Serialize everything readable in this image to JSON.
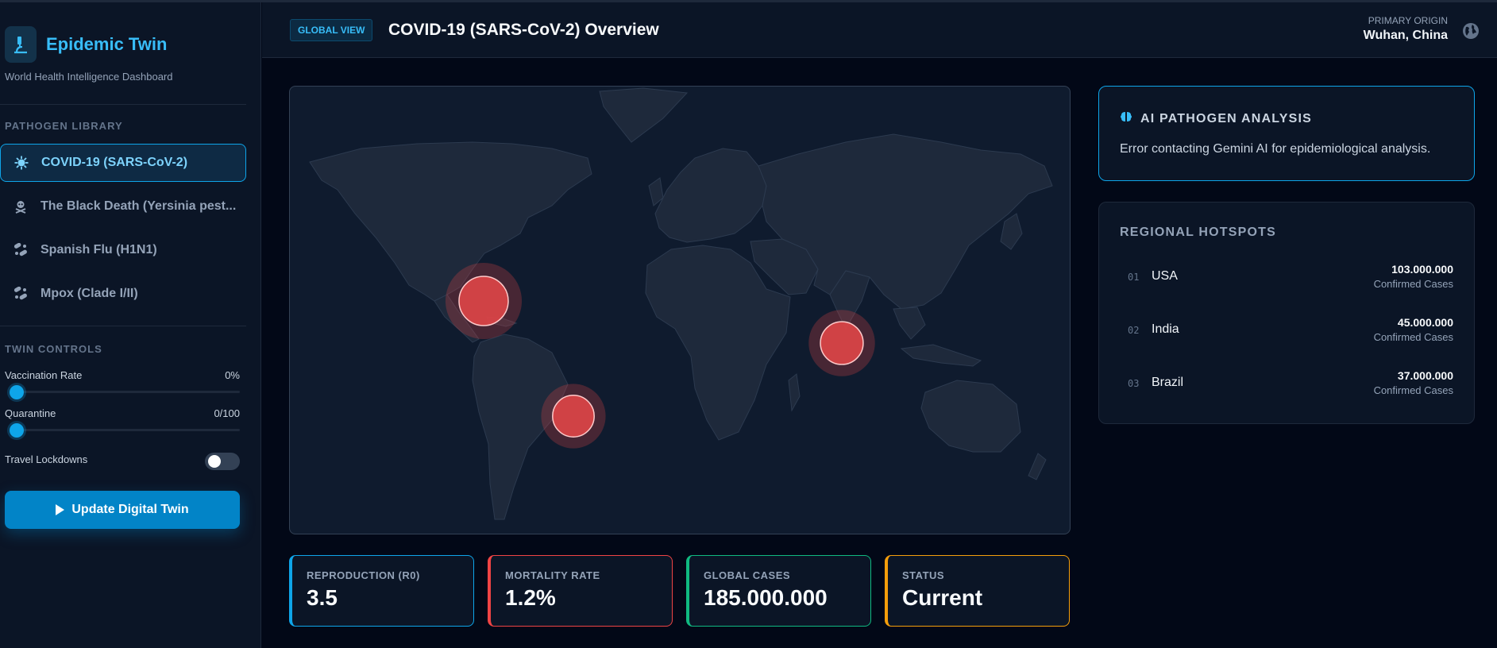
{
  "app": {
    "title": "Epidemic Twin",
    "subtitle": "World Health Intelligence Dashboard"
  },
  "sidebar": {
    "library_title": "PATHOGEN LIBRARY",
    "pathogens": [
      {
        "label": "COVID-19 (SARS-CoV-2)",
        "icon": "virus-icon",
        "active": true
      },
      {
        "label": "The Black Death (Yersinia pest...",
        "icon": "skull-icon",
        "active": false
      },
      {
        "label": "Spanish Flu (H1N1)",
        "icon": "bacteria-icon",
        "active": false
      },
      {
        "label": "Mpox (Clade I/II)",
        "icon": "bacteria-icon",
        "active": false
      }
    ],
    "controls_title": "TWIN CONTROLS",
    "vaccination": {
      "label": "Vaccination Rate",
      "value": "0%",
      "fraction": 0
    },
    "quarantine": {
      "label": "Quarantine",
      "value": "0/100",
      "fraction": 0
    },
    "travel": {
      "label": "Travel Lockdowns",
      "on": false
    },
    "update_button": "Update Digital Twin"
  },
  "header": {
    "badge": "GLOBAL VIEW",
    "title": "COVID-19 (SARS-CoV-2) Overview",
    "origin_label": "PRIMARY ORIGIN",
    "origin_value": "Wuhan, China"
  },
  "stats": [
    {
      "label": "REPRODUCTION (R0)",
      "value": "3.5",
      "color": "#0ea5e9"
    },
    {
      "label": "MORTALITY RATE",
      "value": "1.2%",
      "color": "#ef4444"
    },
    {
      "label": "GLOBAL CASES",
      "value": "185.000.000",
      "color": "#10b981"
    },
    {
      "label": "STATUS",
      "value": "Current",
      "color": "#f59e0b"
    }
  ],
  "ai": {
    "title": "AI PATHOGEN ANALYSIS",
    "message": "Error contacting Gemini AI for epidemiological analysis."
  },
  "hotspots": {
    "title": "REGIONAL HOTSPOTS",
    "items": [
      {
        "rank": "01",
        "name": "USA",
        "value": "103.000.000",
        "sub": "Confirmed Cases"
      },
      {
        "rank": "02",
        "name": "India",
        "value": "45.000.000",
        "sub": "Confirmed Cases"
      },
      {
        "rank": "03",
        "name": "Brazil",
        "value": "37.000.000",
        "sub": "Confirmed Cases"
      }
    ]
  },
  "colors": {
    "accent": "#0ea5e9",
    "hotspot": "#dc4446",
    "background": "#020817",
    "panel": "#0b1526"
  }
}
